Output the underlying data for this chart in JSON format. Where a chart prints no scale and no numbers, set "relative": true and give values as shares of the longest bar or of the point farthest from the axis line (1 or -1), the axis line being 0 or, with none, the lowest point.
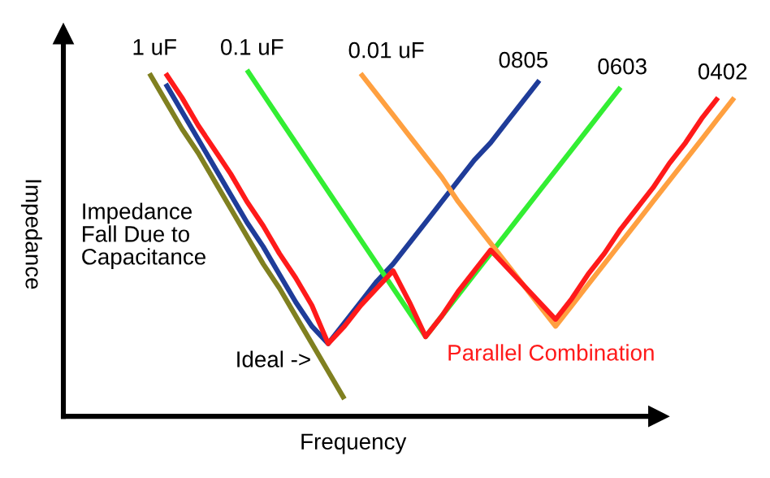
{
  "chart_data": {
    "type": "line",
    "relative": true,
    "xlabel": "Frequency",
    "ylabel": "Impedance",
    "grid": false,
    "legend": false,
    "marker": "none",
    "line_style": "solid",
    "categories": [
      null,
      null,
      null,
      null,
      null,
      null,
      null,
      null,
      null,
      null,
      null,
      null,
      null,
      null,
      null,
      null,
      null,
      null,
      null,
      null,
      null,
      null,
      null,
      null,
      null,
      null,
      null,
      null,
      null,
      null,
      null,
      null,
      null,
      null,
      null,
      null,
      null,
      null,
      null,
      null,
      null,
      null
    ],
    "series": [
      {
        "color": "#808020",
        "values": [
          null,
          null,
          null,
          null,
          null,
          0.99,
          0.91,
          0.83,
          0.76,
          0.68,
          0.6,
          0.52,
          0.44,
          0.37,
          0.29,
          0.21,
          0.13,
          0.05,
          null,
          null,
          null,
          null,
          null,
          null,
          null,
          null,
          null,
          null,
          null,
          null,
          null,
          null,
          null,
          null,
          null,
          null,
          null,
          null,
          null,
          null,
          null,
          null
        ]
      },
      {
        "color": "#1f3c99",
        "values": [
          null,
          null,
          null,
          null,
          null,
          null,
          0.96,
          0.88,
          0.8,
          0.72,
          0.64,
          0.56,
          0.49,
          0.41,
          0.33,
          0.26,
          0.21,
          0.27,
          0.33,
          0.39,
          0.44,
          0.5,
          0.56,
          0.62,
          0.68,
          0.74,
          0.79,
          0.85,
          0.91,
          0.97,
          null,
          null,
          null,
          null,
          null,
          null,
          null,
          null,
          null,
          null,
          null,
          null
        ]
      },
      {
        "color": "#33ee33",
        "values": [
          null,
          null,
          null,
          null,
          null,
          null,
          null,
          null,
          null,
          null,
          null,
          1.0,
          0.93,
          0.86,
          0.79,
          0.72,
          0.65,
          0.58,
          0.51,
          0.44,
          0.37,
          0.3,
          0.23,
          0.29,
          0.35,
          0.41,
          0.47,
          0.53,
          0.59,
          0.65,
          0.71,
          0.77,
          0.83,
          0.89,
          0.95,
          null,
          null,
          null,
          null,
          null,
          null,
          null
        ]
      },
      {
        "color": "#ffa040",
        "values": [
          null,
          null,
          null,
          null,
          null,
          null,
          null,
          null,
          null,
          null,
          null,
          null,
          null,
          null,
          null,
          null,
          null,
          null,
          0.99,
          0.93,
          0.87,
          0.81,
          0.75,
          0.69,
          0.62,
          0.56,
          0.5,
          0.44,
          0.38,
          0.32,
          0.26,
          0.32,
          0.38,
          0.44,
          0.5,
          0.56,
          0.62,
          0.68,
          0.74,
          0.8,
          0.86,
          0.92
        ]
      },
      {
        "name": "Parallel Combination",
        "color": "#ff1a1a",
        "values": [
          null,
          null,
          null,
          null,
          null,
          null,
          0.99,
          0.92,
          0.84,
          0.77,
          0.7,
          0.62,
          0.55,
          0.47,
          0.4,
          0.32,
          0.21,
          0.26,
          0.32,
          0.37,
          0.42,
          0.33,
          0.23,
          0.29,
          0.36,
          0.42,
          0.48,
          0.43,
          0.38,
          0.33,
          0.28,
          0.34,
          0.41,
          0.47,
          0.54,
          0.6,
          0.66,
          0.73,
          0.79,
          0.86,
          0.92,
          null
        ]
      }
    ],
    "annotations": [
      "1 uF",
      "0.1 uF",
      "0.01 uF",
      "0805",
      "0603",
      "0402",
      "Impedance\nFall Due to\nCapacitance",
      "Ideal ->"
    ]
  }
}
